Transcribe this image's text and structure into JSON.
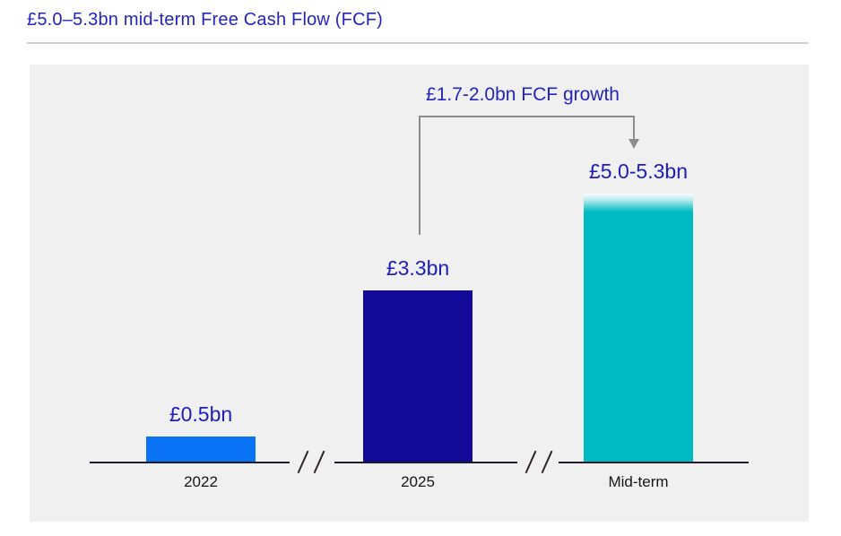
{
  "page": {
    "title": "£5.0–5.3bn mid-term Free Cash Flow (FCF)"
  },
  "colors": {
    "title_blue": "#2424be",
    "value_label_blue": "#1d1dbb",
    "panel_background": "#f0f0f0",
    "arrow_gray": "#8c8c8c",
    "axis_line": "#1c1c28",
    "bar_2022": "#0a72f5",
    "bar_2025": "#140a9a",
    "bar_midterm": "#00bcc2"
  },
  "chart_data": {
    "type": "bar",
    "title": "£5.0–5.3bn mid-term Free Cash Flow (FCF)",
    "categories": [
      "2022",
      "2025",
      "Mid-term"
    ],
    "values": [
      0.5,
      3.3,
      5.15
    ],
    "value_labels": [
      "£0.5bn",
      "£3.3bn",
      "£5.0-5.3bn"
    ],
    "series": [
      {
        "name": "Free Cash Flow",
        "values": [
          0.5,
          3.3,
          5.15
        ]
      }
    ],
    "unit": "£bn",
    "xlabel": "",
    "ylabel": "",
    "ylim": [
      0,
      5.5
    ],
    "grid": false,
    "legend_position": "none",
    "annotation": "£1.7-2.0bn FCF growth",
    "midterm_range_bn": [
      5.0,
      5.3
    ],
    "axis_breaks_between_categories": true,
    "bar_colors": [
      "#0a72f5",
      "#140a9a",
      "#00bcc2"
    ]
  }
}
